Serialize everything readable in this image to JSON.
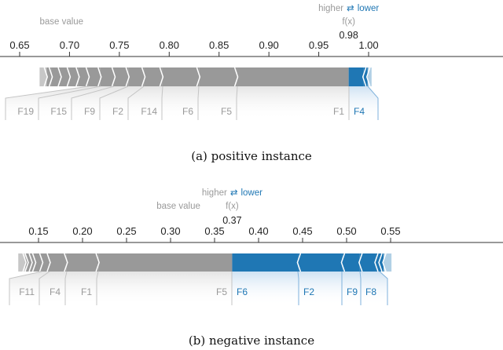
{
  "colors": {
    "positive": "#999999",
    "negative": "#1f77b4",
    "label_gray": "#9a9a9a",
    "axis": "#333333"
  },
  "chart_data": [
    {
      "type": "force",
      "caption": "(a) positive instance",
      "legend": {
        "higher": "higher",
        "arrow": "⇄",
        "lower": "lower"
      },
      "fx_label": "f(x)",
      "fx_value": 0.98,
      "fx_text": "0.98",
      "base_value_label": "base value",
      "base_value": 0.692,
      "xlim": [
        0.633,
        1.019
      ],
      "ticks": [
        0.65,
        0.7,
        0.75,
        0.8,
        0.85,
        0.9,
        0.95,
        1.0
      ],
      "tick_labels": [
        "0.65",
        "0.70",
        "0.75",
        "0.80",
        "0.85",
        "0.90",
        "0.95",
        "1.00"
      ],
      "positive_boundaries": [
        0.67,
        0.677,
        0.682,
        0.691,
        0.7,
        0.709,
        0.719,
        0.731,
        0.745,
        0.759,
        0.775,
        0.793,
        0.83,
        0.868,
        0.98
      ],
      "negative_boundaries": [
        0.98,
        0.995,
        0.999,
        1.003
      ],
      "labels": [
        {
          "name": "F19",
          "side": "positive"
        },
        {
          "name": "F15",
          "side": "positive"
        },
        {
          "name": "F9",
          "side": "positive"
        },
        {
          "name": "F2",
          "side": "positive"
        },
        {
          "name": "F14",
          "side": "positive"
        },
        {
          "name": "F6",
          "side": "positive"
        },
        {
          "name": "F5",
          "side": "positive"
        },
        {
          "name": "F1",
          "side": "positive"
        },
        {
          "name": "F4",
          "side": "negative"
        }
      ]
    },
    {
      "type": "force",
      "caption": "(b) negative instance",
      "legend": {
        "higher": "higher",
        "arrow": "⇄",
        "lower": "lower"
      },
      "fx_label": "f(x)",
      "fx_value": 0.37,
      "fx_text": "0.37",
      "base_value_label": "base value",
      "base_value": 0.309,
      "xlim": [
        0.106,
        0.571
      ],
      "ticks": [
        0.15,
        0.2,
        0.25,
        0.3,
        0.35,
        0.4,
        0.45,
        0.5,
        0.55
      ],
      "tick_labels": [
        "0.15",
        "0.20",
        "0.25",
        "0.30",
        "0.35",
        "0.40",
        "0.45",
        "0.50",
        "0.55"
      ],
      "positive_boundaries": [
        0.127,
        0.135,
        0.1375,
        0.142,
        0.146,
        0.154,
        0.1625,
        0.182,
        0.218,
        0.37
      ],
      "negative_boundaries": [
        0.37,
        0.445,
        0.495,
        0.515,
        0.533,
        0.5375,
        0.542,
        0.551
      ],
      "labels": [
        {
          "name": "F11",
          "side": "positive"
        },
        {
          "name": "F4",
          "side": "positive"
        },
        {
          "name": "F1",
          "side": "positive"
        },
        {
          "name": "F5",
          "side": "positive"
        },
        {
          "name": "F6",
          "side": "negative"
        },
        {
          "name": "F2",
          "side": "negative"
        },
        {
          "name": "F9",
          "side": "negative"
        },
        {
          "name": "F8",
          "side": "negative"
        }
      ]
    }
  ]
}
